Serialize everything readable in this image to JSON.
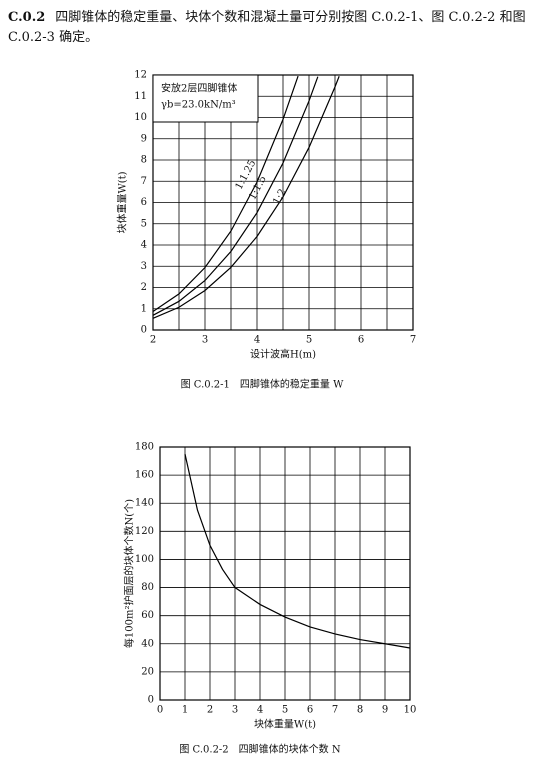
{
  "section": {
    "number": "C.0.2",
    "text": "四脚锥体的稳定重量、块体个数和混凝土量可分别按图 C.0.2-1、图 C.0.2-2 和图 C.0.2-3 确定。"
  },
  "chart_data": [
    {
      "type": "line",
      "caption": "图 C.0.2-1　四脚锥体的稳定重量 W",
      "xlabel": "设计波高H(m)",
      "ylabel": "块体重量W(t)",
      "annotation": [
        "安放2层四脚锥体",
        "γb=23.0kN/m³"
      ],
      "xlim": [
        2,
        7
      ],
      "xticks": [
        2,
        3,
        4,
        5,
        6,
        7
      ],
      "xgrid": [
        2,
        2.5,
        3,
        3.5,
        4,
        4.5,
        5,
        5.5,
        6,
        6.5,
        7
      ],
      "ylim": [
        0,
        12
      ],
      "yticks": [
        0,
        1,
        2,
        3,
        4,
        5,
        6,
        7,
        8,
        9,
        10,
        11,
        12
      ],
      "grid": true,
      "color": "#000000",
      "series": [
        {
          "name": "1:1.25",
          "x": [
            2,
            2.5,
            3,
            3.5,
            4,
            4.5,
            4.79
          ],
          "values": [
            0.87,
            1.7,
            2.94,
            4.66,
            6.96,
            9.91,
            11.95
          ]
        },
        {
          "name": "1:1.5",
          "x": [
            2,
            2.5,
            3,
            3.5,
            4,
            4.5,
            5,
            5.17
          ],
          "values": [
            0.69,
            1.35,
            2.33,
            3.7,
            5.52,
            7.86,
            10.78,
            11.92
          ]
        },
        {
          "name": "1:2",
          "x": [
            2,
            2.5,
            3,
            3.5,
            4,
            4.5,
            5,
            5.5,
            5.58
          ],
          "values": [
            0.55,
            1.07,
            1.86,
            2.95,
            4.4,
            6.26,
            8.59,
            11.44,
            11.94
          ]
        }
      ]
    },
    {
      "type": "line",
      "caption": "图 C.0.2-2　四脚锥体的块体个数 N",
      "xlabel": "块体重量W(t)",
      "ylabel": "每100m²护面层的块体个数N(个)",
      "xlim": [
        0,
        10
      ],
      "xticks": [
        0,
        1,
        2,
        3,
        4,
        5,
        6,
        7,
        8,
        9,
        10
      ],
      "xgrid": [
        0,
        1,
        2,
        3,
        4,
        5,
        6,
        7,
        8,
        9,
        10
      ],
      "ylim": [
        0,
        180
      ],
      "yticks": [
        0,
        20,
        40,
        60,
        80,
        100,
        120,
        140,
        160,
        180
      ],
      "grid": true,
      "color": "#000000",
      "series": [
        {
          "x": [
            1,
            1.5,
            2,
            2.5,
            3,
            4,
            5,
            6,
            7,
            8,
            9,
            10
          ],
          "values": [
            175,
            135,
            110,
            93,
            80,
            68,
            59,
            52,
            47,
            43,
            40,
            37
          ]
        }
      ]
    }
  ]
}
